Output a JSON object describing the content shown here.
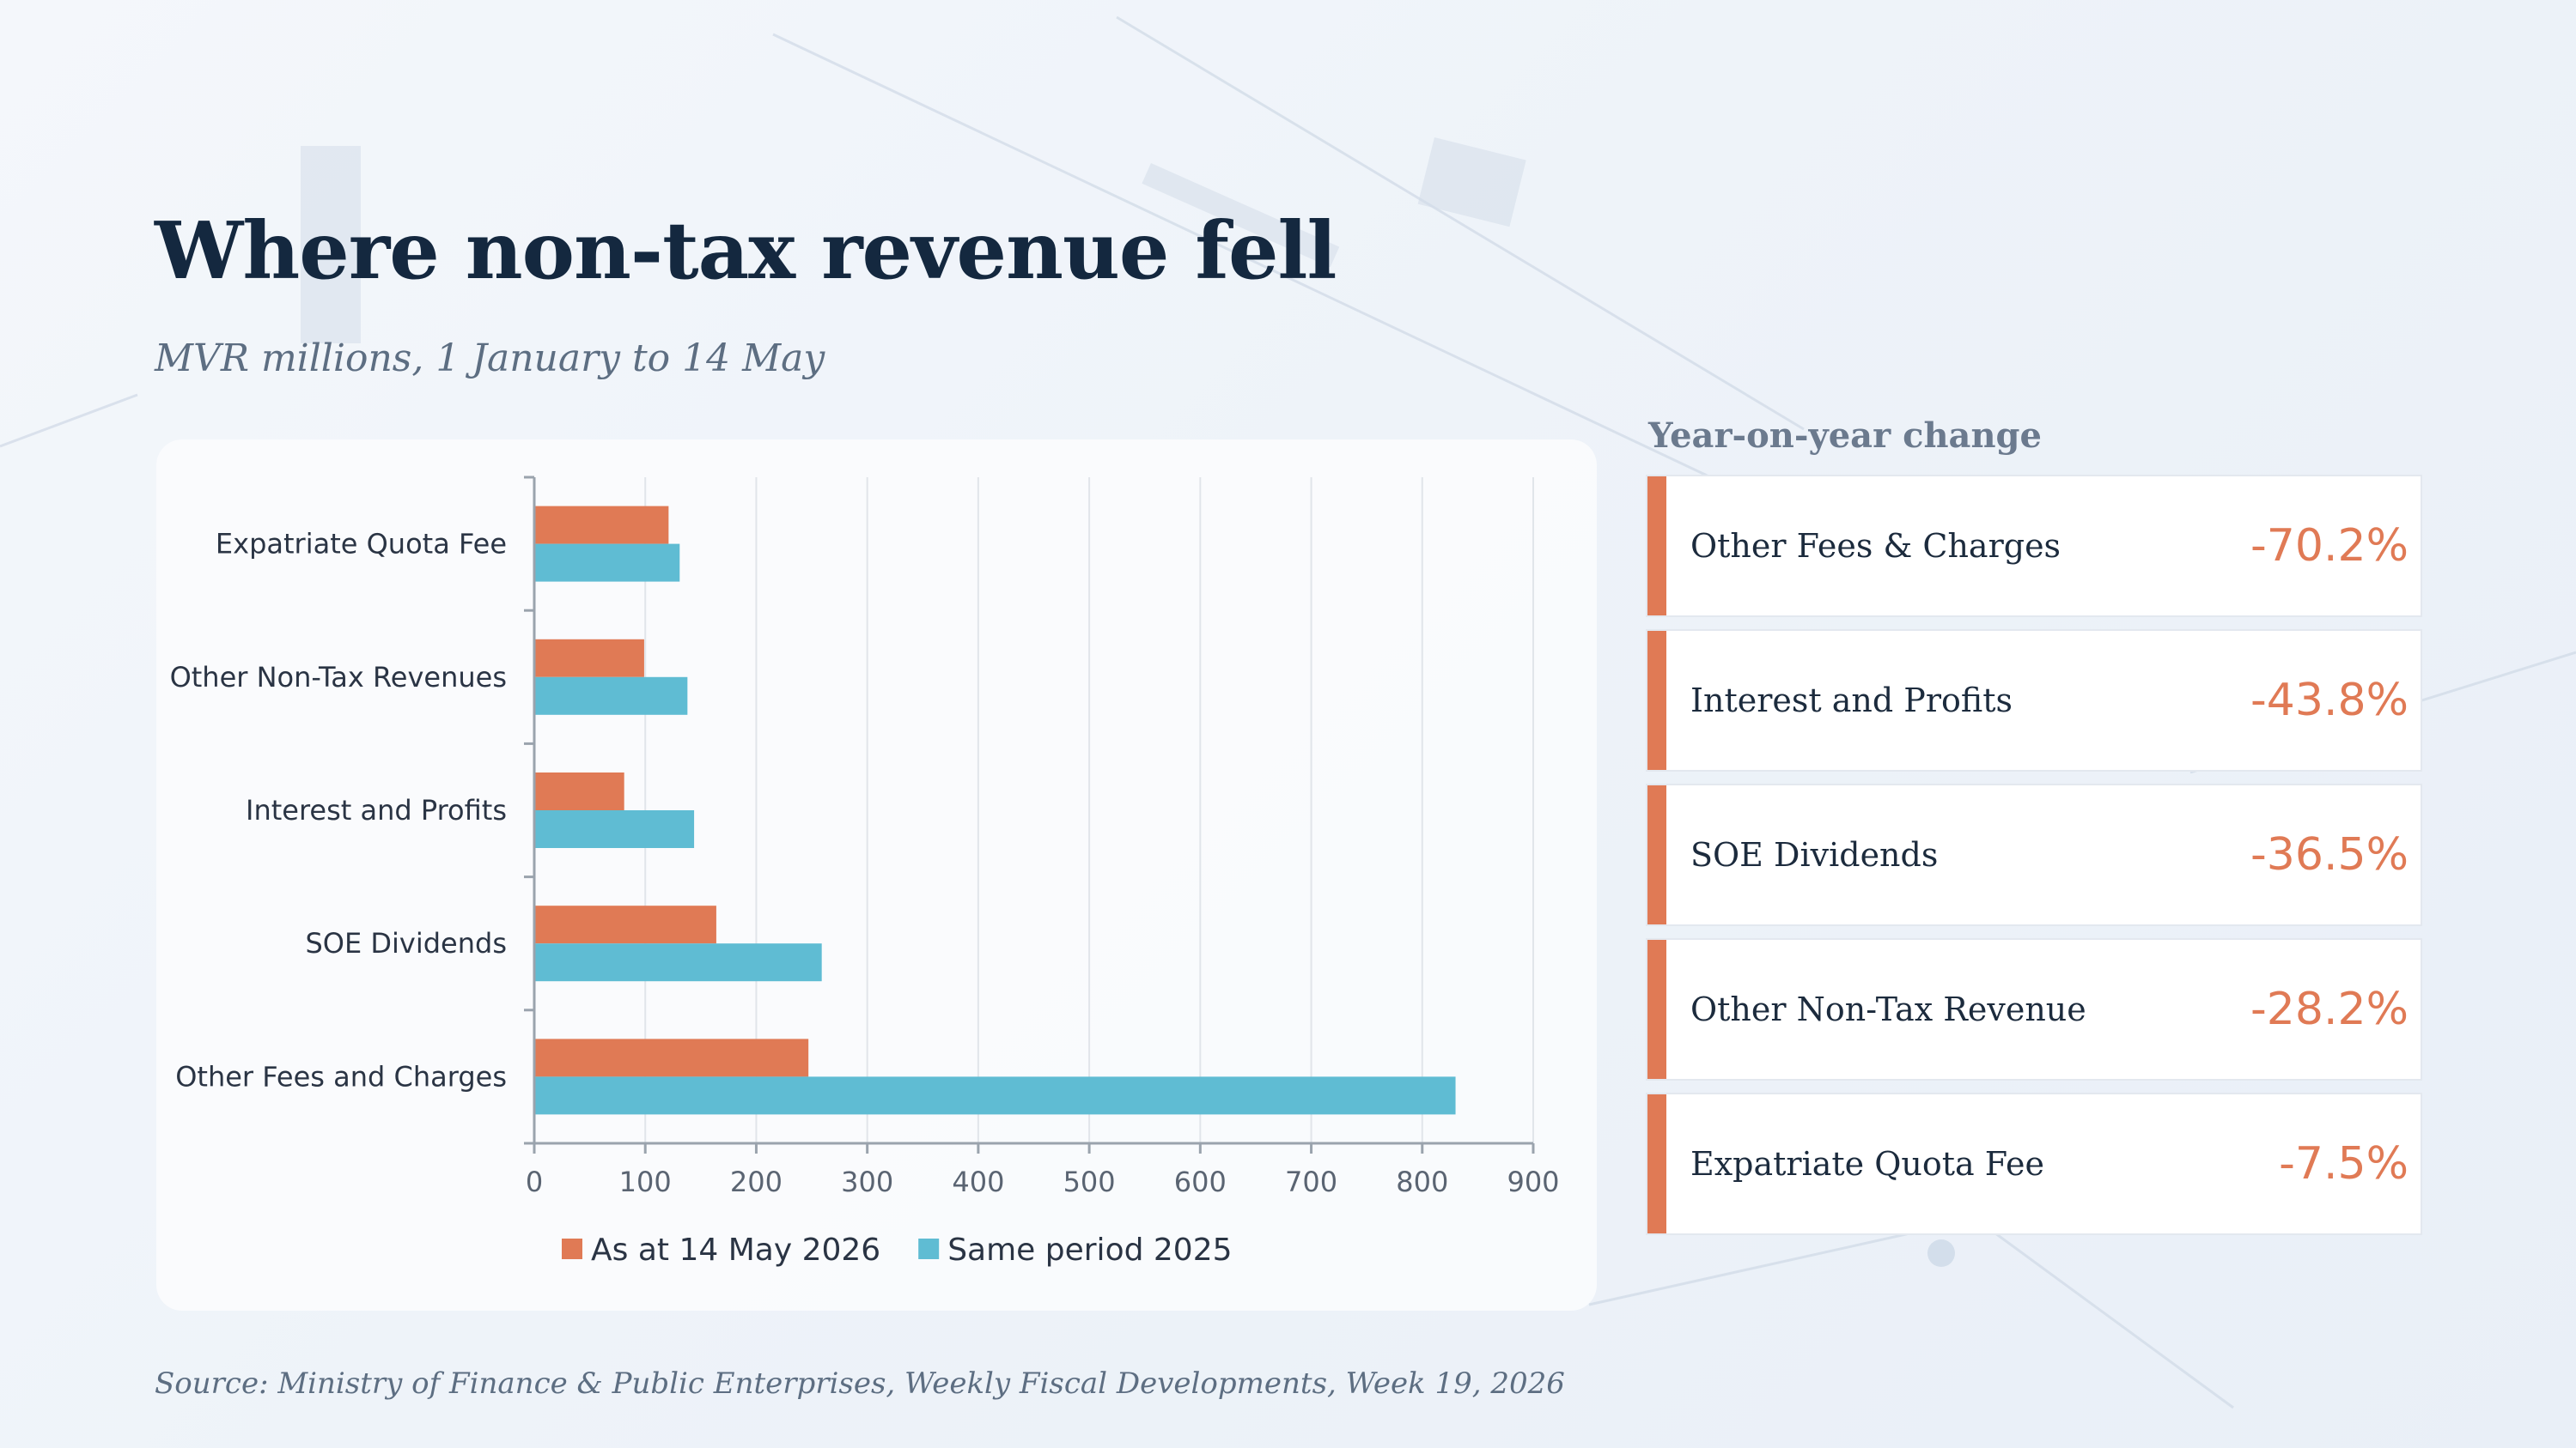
{
  "title": "Where non-tax revenue fell",
  "subtitle": "MVR millions, 1 January to 14 May",
  "yoy_heading": "Year-on-year change",
  "source": "Source: Ministry of Finance & Public Enterprises, Weekly Fiscal Developments, Week 19, 2026",
  "colors": {
    "series_2026": "#e07a55",
    "series_2025": "#5fbcd3",
    "title": "#14283f",
    "accent": "#e07a55"
  },
  "yoy": [
    {
      "label": "Other Fees & Charges",
      "value": "-70.2%"
    },
    {
      "label": "Interest and Profits",
      "value": "-43.8%"
    },
    {
      "label": "SOE Dividends",
      "value": "-36.5%"
    },
    {
      "label": "Other Non-Tax Revenue",
      "value": "-28.2%"
    },
    {
      "label": "Expatriate Quota Fee",
      "value": "-7.5%"
    }
  ],
  "chart_data": {
    "type": "bar",
    "orientation": "horizontal",
    "categories": [
      "Expatriate Quota Fee",
      "Other Non-Tax Revenues",
      "Interest and Profits",
      "SOE Dividends",
      "Other Fees and Charges"
    ],
    "series": [
      {
        "name": "As at 14 May 2026",
        "values": [
          121,
          99,
          81,
          164,
          247
        ]
      },
      {
        "name": "Same period 2025",
        "values": [
          131,
          138,
          144,
          259,
          830
        ]
      }
    ],
    "xlim": [
      0,
      900
    ],
    "xticks": [
      0,
      100,
      200,
      300,
      400,
      500,
      600,
      700,
      800,
      900
    ],
    "grid": "vertical",
    "legend_position": "bottom"
  }
}
